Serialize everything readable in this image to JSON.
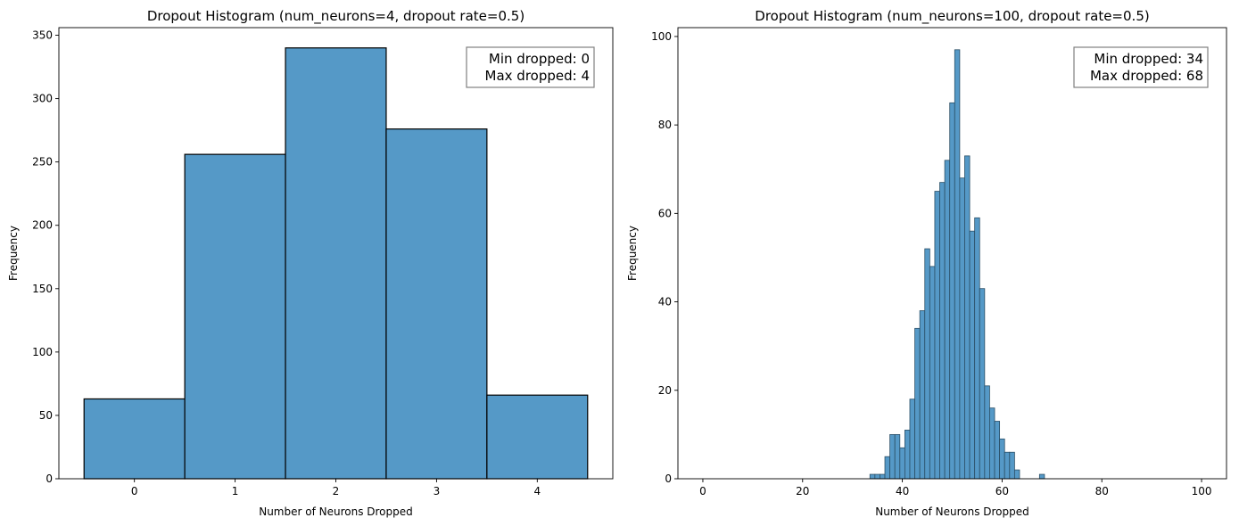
{
  "chart_data": [
    {
      "type": "histogram",
      "title": "Dropout Histogram (num_neurons=4, dropout rate=0.5)",
      "xlabel": "Number of Neurons Dropped",
      "ylabel": "Frequency",
      "xlim": [
        -0.75,
        4.75
      ],
      "ylim": [
        0,
        356
      ],
      "xticks": [
        0,
        1,
        2,
        3,
        4
      ],
      "yticks": [
        0,
        50,
        100,
        150,
        200,
        250,
        300,
        350
      ],
      "bin_width": 1,
      "x": [
        0,
        1,
        2,
        3,
        4
      ],
      "values": [
        63,
        256,
        340,
        276,
        66
      ],
      "bar_color": "#5599c7",
      "edge_color": "#000000",
      "annotation": [
        "Min dropped: 0",
        "Max dropped: 4"
      ],
      "legend_placement": "top-right",
      "grid": false
    },
    {
      "type": "histogram",
      "title": "Dropout Histogram (num_neurons=100, dropout rate=0.5)",
      "xlabel": "Number of Neurons Dropped",
      "ylabel": "Frequency",
      "xlim": [
        -5,
        105
      ],
      "ylim": [
        0,
        102
      ],
      "xticks": [
        0,
        20,
        40,
        60,
        80,
        100
      ],
      "yticks": [
        0,
        20,
        40,
        60,
        80,
        100
      ],
      "bin_width": 1,
      "x": [
        34,
        35,
        36,
        37,
        38,
        39,
        40,
        41,
        42,
        43,
        44,
        45,
        46,
        47,
        48,
        49,
        50,
        51,
        52,
        53,
        54,
        55,
        56,
        57,
        58,
        59,
        60,
        61,
        62,
        63,
        64,
        65,
        66,
        67,
        68
      ],
      "values": [
        1,
        1,
        1,
        5,
        10,
        10,
        7,
        11,
        18,
        34,
        38,
        52,
        48,
        65,
        67,
        72,
        85,
        97,
        68,
        73,
        56,
        59,
        43,
        21,
        16,
        13,
        9,
        6,
        6,
        2,
        0,
        0,
        0,
        0,
        1
      ],
      "bar_color": "#5599c7",
      "edge_color": "#2b4f66",
      "annotation": [
        "Min dropped: 34",
        "Max dropped: 68"
      ],
      "legend_placement": "top-right",
      "grid": false
    }
  ]
}
